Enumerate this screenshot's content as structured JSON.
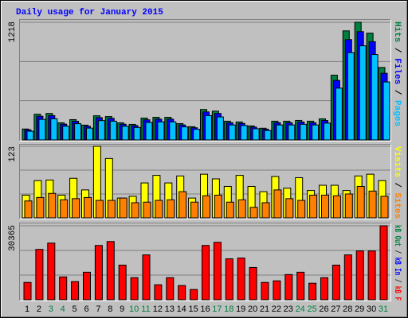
{
  "chart_data": [
    {
      "type": "bar",
      "title": "Daily usage for January 2015",
      "legend_separator": " / ",
      "ylim": [
        0,
        1218
      ],
      "yticks": [
        1218
      ],
      "series": [
        {
          "name": "Hits",
          "color": "#008040",
          "values": [
            113,
            266,
            274,
            177,
            210,
            153,
            250,
            242,
            177,
            161,
            226,
            234,
            234,
            169,
            137,
            315,
            298,
            194,
            186,
            145,
            121,
            194,
            194,
            202,
            194,
            218,
            670,
            1129,
            1218,
            1105,
            750
          ]
        },
        {
          "name": "Files",
          "color": "#0000ff",
          "values": [
            104,
            245,
            252,
            163,
            193,
            141,
            230,
            223,
            163,
            148,
            208,
            215,
            215,
            155,
            126,
            290,
            274,
            178,
            171,
            133,
            111,
            178,
            178,
            186,
            178,
            201,
            616,
            1039,
            1121,
            1017,
            690
          ]
        },
        {
          "name": "Pages",
          "color": "#00c0ff",
          "values": [
            90,
            213,
            219,
            142,
            168,
            122,
            200,
            194,
            142,
            129,
            181,
            187,
            187,
            135,
            110,
            252,
            238,
            155,
            149,
            116,
            97,
            155,
            155,
            162,
            155,
            174,
            536,
            903,
            974,
            884,
            600
          ]
        }
      ]
    },
    {
      "type": "bar",
      "ylim": [
        0,
        123
      ],
      "yticks": [
        123
      ],
      "series": [
        {
          "name": "Visits",
          "color": "#ffff00",
          "values": [
            39,
            64,
            65,
            39,
            68,
            48,
            123,
            102,
            34,
            37,
            60,
            73,
            60,
            72,
            34,
            75,
            67,
            54,
            73,
            54,
            45,
            71,
            51,
            69,
            47,
            56,
            56,
            47,
            72,
            75,
            64
          ]
        },
        {
          "name": "Sites",
          "color": "#ff8000",
          "values": [
            29,
            35,
            42,
            31,
            33,
            35,
            30,
            30,
            34,
            26,
            27,
            30,
            31,
            45,
            27,
            38,
            39,
            27,
            31,
            18,
            26,
            48,
            33,
            30,
            39,
            39,
            38,
            41,
            54,
            46,
            37
          ]
        }
      ]
    },
    {
      "type": "bar",
      "ylim": [
        0,
        30365
      ],
      "yticks": [
        30365
      ],
      "categories": [
        "1",
        "2",
        "3",
        "4",
        "5",
        "6",
        "7",
        "8",
        "9",
        "10",
        "11",
        "12",
        "13",
        "14",
        "15",
        "16",
        "17",
        "18",
        "19",
        "20",
        "21",
        "22",
        "23",
        "24",
        "25",
        "26",
        "27",
        "28",
        "29",
        "30",
        "31"
      ],
      "category_colors": [
        "#000000",
        "#000000",
        "#008040",
        "#008040",
        "#000000",
        "#000000",
        "#000000",
        "#000000",
        "#000000",
        "#008040",
        "#008040",
        "#000000",
        "#000000",
        "#000000",
        "#000000",
        "#000000",
        "#008040",
        "#008040",
        "#000000",
        "#000000",
        "#000000",
        "#000000",
        "#000000",
        "#008040",
        "#008040",
        "#000000",
        "#000000",
        "#000000",
        "#000000",
        "#000000",
        "#008040"
      ],
      "series": [
        {
          "name": "kB Out",
          "color": "#008040"
        },
        {
          "name": "kB In",
          "color": "#0000ff"
        },
        {
          "name": "kB F",
          "color": "#ff0000",
          "values": [
            7106,
            20672,
            23256,
            9367,
            7429,
            11305,
            22287,
            23902,
            14212,
            9044,
            18411,
            6137,
            9044,
            5814,
            4199,
            22287,
            23579,
            16796,
            17119,
            13243,
            7106,
            7752,
            10336,
            11305,
            6783,
            9044,
            14212,
            18411,
            20026,
            20026,
            30365
          ]
        }
      ]
    }
  ]
}
